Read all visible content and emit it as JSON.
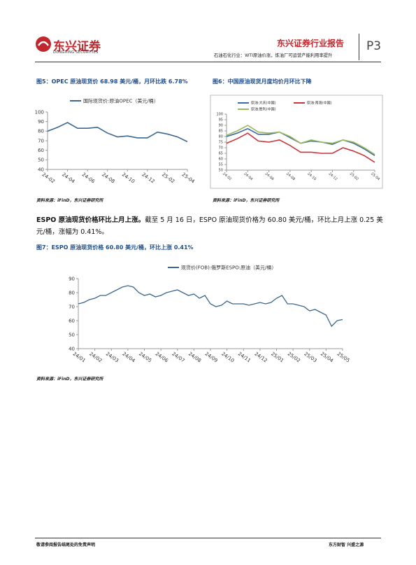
{
  "header": {
    "logo_cn": "东兴证券",
    "logo_en": "DONGXING SECURITIES",
    "report_type": "东兴证券行业报告",
    "subtitle": "石油石化行业：WTI原油价涨，炼油厂可运营产能利用率提升",
    "page": "P3"
  },
  "figures": [
    {
      "title": "图5：OPEC 原油现货价 68.98 美元/桶，月环比跌 6.78%",
      "source": "资料来源：iFinD，东兴证券研究所"
    },
    {
      "title": "图6：中国原油现货月度均价月环比下降",
      "source": "资料来源：iFinD，东兴证券研究所"
    },
    {
      "title": "图7：ESPO 原油现货价格 60.80 美元/桶，环比上涨 0.41%",
      "source": "资料来源：iFinD，东兴证券研究所"
    }
  ],
  "paragraph": {
    "lead": "ESPO 原油现货价格环比上月上涨。",
    "body": "截至 5 月 16 日，ESPO 原油现货价格为 60.80 美元/桶，环比上月上涨 0.25 美元/桶，涨幅为 0.41%。"
  },
  "footer": {
    "left": "敬请参阅报告结尾处的免责声明",
    "right": "东方财智 兴盛之源"
  },
  "chart_data": [
    {
      "type": "line",
      "categories": [
        "24-02",
        null,
        "24-04",
        null,
        "24-06",
        null,
        "24-08",
        null,
        "24-10",
        null,
        "24-12",
        null,
        "25-02",
        null,
        "25-04"
      ],
      "series": [
        {
          "name": "国际现货价:原油OPEC（美元/桶）",
          "color": "#3d6690",
          "values": [
            80,
            84,
            89,
            83,
            83,
            84,
            78,
            74,
            75,
            73,
            73,
            79,
            77,
            74,
            68.98
          ]
        }
      ],
      "ylim": [
        40,
        100
      ],
      "yticks": [
        40,
        50,
        60,
        70,
        80,
        90,
        100
      ]
    },
    {
      "type": "line",
      "categories": [
        "24-02",
        null,
        "24-04",
        null,
        "24-06",
        null,
        "24-08",
        null,
        "24-10",
        null,
        "24-12",
        null,
        "25-02",
        null,
        "25-04"
      ],
      "series": [
        {
          "name": "原油:大庆(中国)",
          "color": "#3d6aa8",
          "values": [
            80,
            83,
            87,
            82,
            82,
            84,
            79,
            74,
            76,
            75,
            73,
            77,
            74,
            69,
            63
          ]
        },
        {
          "name": "原油:南海(中国)",
          "color": "#c8353a",
          "values": [
            74,
            78,
            83,
            76,
            75,
            77,
            72,
            66,
            66,
            65,
            65,
            70,
            67,
            63,
            57
          ]
        },
        {
          "name": "原油:胜利(中国)",
          "color": "#9bbb59",
          "values": [
            81,
            85,
            90,
            84,
            83,
            84,
            80,
            74,
            77,
            75,
            74,
            77,
            75,
            70,
            64
          ]
        }
      ],
      "ylim": [
        50,
        100
      ],
      "yticks": [
        50,
        55,
        60,
        65,
        70,
        75,
        80,
        85,
        90,
        95,
        100
      ]
    },
    {
      "type": "line",
      "categories": [
        "24/01",
        null,
        null,
        "24/02",
        null,
        null,
        "24/03",
        null,
        null,
        "24/04",
        null,
        null,
        "24/05",
        null,
        null,
        "24/06",
        null,
        null,
        "24/07",
        null,
        null,
        "24/08",
        null,
        null,
        "24/09",
        null,
        null,
        "24/10",
        null,
        null,
        "24/11",
        null,
        null,
        "24/12",
        null,
        null,
        "25/01",
        null,
        null,
        "25/02",
        null,
        null,
        "25/03",
        null,
        null,
        "25/04",
        null,
        null,
        "25/05"
      ],
      "series": [
        {
          "name": "现货价(FOB):俄罗斯ESPO:原油（美元/桶）",
          "color": "#3d6690",
          "values": [
            72,
            73,
            75,
            76,
            78,
            78,
            80,
            82,
            84,
            85,
            84,
            80,
            78,
            79,
            77,
            78,
            80,
            81,
            82,
            80,
            78,
            79,
            76,
            78,
            72,
            70,
            71,
            74,
            72,
            72,
            72,
            71,
            72,
            73,
            72,
            73,
            76,
            78,
            72,
            72,
            71,
            70,
            67,
            68,
            66,
            64,
            56,
            60,
            60.8
          ]
        }
      ],
      "ylim": [
        40,
        90
      ],
      "yticks": [
        40,
        50,
        60,
        70,
        80,
        90
      ]
    }
  ]
}
